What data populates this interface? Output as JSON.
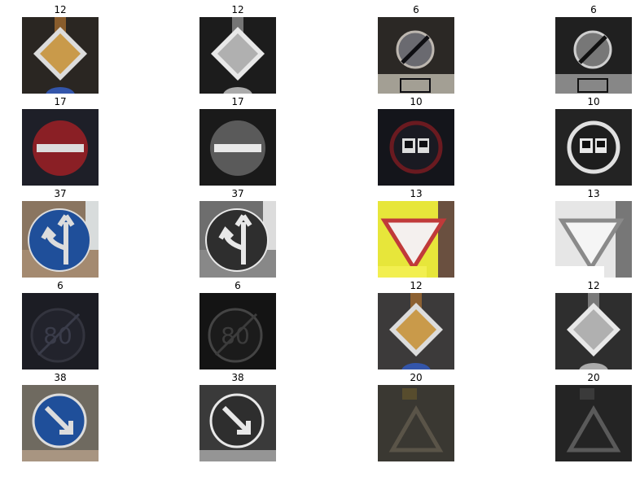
{
  "figure": {
    "images": [
      {
        "label": "12",
        "mode": "color",
        "sign": "priority",
        "bg": "#2a2622"
      },
      {
        "label": "12",
        "mode": "gray",
        "sign": "priority",
        "bg": "#1c1c1c"
      },
      {
        "label": "6",
        "mode": "color",
        "sign": "end-limit",
        "bg": "#2b2825"
      },
      {
        "label": "6",
        "mode": "gray",
        "sign": "end-limit",
        "bg": "#202020"
      },
      {
        "label": "17",
        "mode": "color",
        "sign": "no-entry",
        "bg": "#1e1f28"
      },
      {
        "label": "17",
        "mode": "gray",
        "sign": "no-entry",
        "bg": "#1a1a1a"
      },
      {
        "label": "10",
        "mode": "color",
        "sign": "no-passing-trucks",
        "bg": "#14151b"
      },
      {
        "label": "10",
        "mode": "gray",
        "sign": "no-passing-trucks",
        "bg": "#232323"
      },
      {
        "label": "37",
        "mode": "color",
        "sign": "straight-or-left",
        "bg": "#8a7560"
      },
      {
        "label": "37",
        "mode": "gray",
        "sign": "straight-or-left",
        "bg": "#6e6e6e"
      },
      {
        "label": "13",
        "mode": "color",
        "sign": "yield",
        "bg": "#e7e63a"
      },
      {
        "label": "13",
        "mode": "gray",
        "sign": "yield",
        "bg": "#e6e6e6"
      },
      {
        "label": "6",
        "mode": "color",
        "sign": "end-limit-80",
        "bg": "#1c1d24"
      },
      {
        "label": "6",
        "mode": "gray",
        "sign": "end-limit-80",
        "bg": "#141414"
      },
      {
        "label": "12",
        "mode": "color",
        "sign": "priority",
        "bg": "#3c3a3a"
      },
      {
        "label": "12",
        "mode": "gray",
        "sign": "priority",
        "bg": "#2e2e2e"
      },
      {
        "label": "38",
        "mode": "color",
        "sign": "keep-right",
        "bg": "#6f6a60"
      },
      {
        "label": "38",
        "mode": "gray",
        "sign": "keep-right",
        "bg": "#3a3a3a"
      },
      {
        "label": "20",
        "mode": "color",
        "sign": "warning",
        "bg": "#3a3832"
      },
      {
        "label": "20",
        "mode": "gray",
        "sign": "warning",
        "bg": "#242424"
      }
    ]
  }
}
